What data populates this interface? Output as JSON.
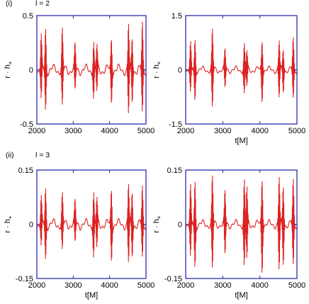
{
  "sections": [
    {
      "label": "(i)",
      "l_text": "l = 2"
    },
    {
      "label": "(ii)",
      "l_text": "l = 3"
    }
  ],
  "chart_data": [
    {
      "type": "line",
      "section": "(i) l = 2",
      "xlabel": "",
      "ylabel": "r · h+",
      "xlim": [
        2000,
        5000
      ],
      "ylim": [
        -0.5,
        0.5
      ],
      "xticks": [
        2000,
        3000,
        4000,
        5000
      ],
      "yticks": [
        -0.5,
        0,
        0.5
      ],
      "ytick_labels": [
        "-0.5",
        "0",
        "0.5"
      ],
      "series_color": "#dd2222",
      "bursts": [
        2120,
        2240,
        2700,
        3050,
        3560,
        3650,
        4050,
        4520,
        4620,
        4900
      ],
      "burst_amps": [
        0.3,
        0.38,
        0.36,
        0.22,
        0.26,
        0.22,
        0.3,
        0.42,
        0.3,
        0.42
      ],
      "baseline_amp": 0.06,
      "baseline_period": 300
    },
    {
      "type": "line",
      "section": "(i) l = 2",
      "xlabel": "t[M]",
      "ylabel": "r · h×",
      "xlim": [
        2000,
        5000
      ],
      "ylim": [
        -1.5,
        1.5
      ],
      "xticks": [
        2000,
        3000,
        4000,
        5000
      ],
      "yticks": [
        -1.5,
        0,
        1.5
      ],
      "ytick_labels": [
        "-1.5",
        "0",
        "1.5"
      ],
      "series_color": "#dd2222",
      "bursts": [
        2130,
        2250,
        2720,
        3060,
        3580,
        3650,
        4060,
        4520,
        4630,
        4900
      ],
      "burst_amps": [
        0.7,
        0.85,
        1.1,
        0.55,
        0.7,
        0.5,
        0.85,
        0.8,
        0.6,
        0.85
      ],
      "baseline_amp": 0.12,
      "baseline_period": 300
    },
    {
      "type": "line",
      "section": "(ii) l = 3",
      "xlabel": "t[M]",
      "ylabel": "r · h+",
      "xlim": [
        2000,
        5000
      ],
      "ylim": [
        -0.15,
        0.15
      ],
      "xticks": [
        2000,
        3000,
        4000,
        5000
      ],
      "yticks": [
        -0.15,
        0,
        0.15
      ],
      "ytick_labels": [
        "-0.15",
        "0",
        "0.15"
      ],
      "series_color": "#dd2222",
      "bursts": [
        2120,
        2240,
        2700,
        3050,
        3560,
        3650,
        4050,
        4520,
        4620,
        4900
      ],
      "burst_amps": [
        0.07,
        0.1,
        0.08,
        0.06,
        0.09,
        0.07,
        0.1,
        0.11,
        0.09,
        0.1
      ],
      "baseline_amp": 0.018,
      "baseline_period": 300
    },
    {
      "type": "line",
      "section": "(ii) l = 3",
      "xlabel": "t[M]",
      "ylabel": "r · h×",
      "xlim": [
        2000,
        5000
      ],
      "ylim": [
        -0.15,
        0.15
      ],
      "xticks": [
        2000,
        3000,
        4000,
        5000
      ],
      "yticks": [
        -0.15,
        0,
        0.15
      ],
      "ytick_labels": [
        "-0.15",
        "0",
        "0.15"
      ],
      "series_color": "#dd2222",
      "bursts": [
        2130,
        2250,
        2720,
        3060,
        3580,
        3650,
        4060,
        4520,
        4630,
        4900
      ],
      "burst_amps": [
        0.1,
        0.12,
        0.13,
        0.09,
        0.12,
        0.1,
        0.13,
        0.13,
        0.11,
        0.12
      ],
      "baseline_amp": 0.015,
      "baseline_period": 300
    }
  ]
}
